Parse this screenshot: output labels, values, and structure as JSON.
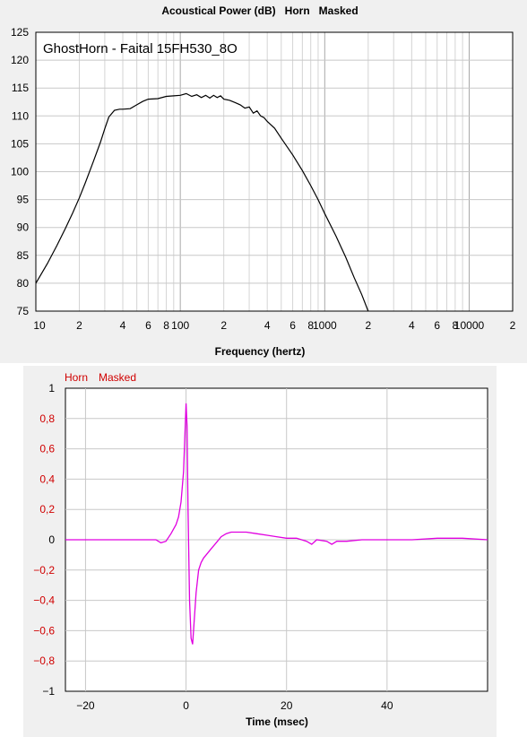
{
  "chart_data": [
    {
      "type": "line",
      "title": "Acoustical Power (dB)   Horn   Masked",
      "annotation": "GhostHorn - Faital 15FH530_8O",
      "xlabel": "Frequency (hertz)",
      "ylabel": "",
      "x_scale": "log",
      "xlim": [
        10,
        20000
      ],
      "ylim": [
        75,
        125
      ],
      "grid": true,
      "x_tick_labels": [
        {
          "v": 10,
          "t": "10"
        },
        {
          "v": 20,
          "t": "2"
        },
        {
          "v": 40,
          "t": "4"
        },
        {
          "v": 60,
          "t": "6"
        },
        {
          "v": 80,
          "t": "8"
        },
        {
          "v": 100,
          "t": "100"
        },
        {
          "v": 200,
          "t": "2"
        },
        {
          "v": 400,
          "t": "4"
        },
        {
          "v": 600,
          "t": "6"
        },
        {
          "v": 800,
          "t": "8"
        },
        {
          "v": 1000,
          "t": "1000"
        },
        {
          "v": 2000,
          "t": "2"
        },
        {
          "v": 4000,
          "t": "4"
        },
        {
          "v": 6000,
          "t": "6"
        },
        {
          "v": 8000,
          "t": "8"
        },
        {
          "v": 10000,
          "t": "10000"
        },
        {
          "v": 20000,
          "t": "2"
        }
      ],
      "y_tick_labels": [
        "75",
        "80",
        "85",
        "90",
        "95",
        "100",
        "105",
        "110",
        "115",
        "120",
        "125"
      ],
      "series": [
        {
          "color": "#000000",
          "x": [
            10,
            12,
            14,
            16,
            18,
            20,
            22,
            25,
            28,
            30,
            32,
            35,
            38,
            40,
            45,
            50,
            55,
            60,
            70,
            80,
            90,
            100,
            110,
            120,
            130,
            140,
            150,
            160,
            170,
            180,
            190,
            200,
            220,
            240,
            260,
            280,
            300,
            320,
            340,
            360,
            380,
            400,
            450,
            500,
            600,
            700,
            800,
            900,
            1000,
            1200,
            1400,
            1600,
            1800,
            2000
          ],
          "y": [
            80,
            83.5,
            86.8,
            89.8,
            92.6,
            95.3,
            98,
            101.8,
            105.3,
            107.7,
            109.8,
            111,
            111.2,
            111.2,
            111.3,
            112,
            112.6,
            113,
            113.1,
            113.5,
            113.6,
            113.7,
            114,
            113.5,
            113.8,
            113.3,
            113.7,
            113.2,
            113.7,
            113.3,
            113.6,
            113,
            112.8,
            112.4,
            112,
            111.4,
            111.6,
            110.5,
            110.9,
            110,
            109.7,
            109,
            107.8,
            106,
            103,
            100.2,
            97.5,
            95,
            92.5,
            88.4,
            84.6,
            81,
            78,
            75
          ]
        }
      ]
    },
    {
      "type": "line",
      "title": "",
      "legend": [
        "Horn",
        "Masked"
      ],
      "xlabel": "Time (msec)",
      "ylabel": "",
      "xlim": [
        -24,
        60
      ],
      "ylim": [
        -1,
        1
      ],
      "grid": true,
      "x_tick_labels": [
        {
          "v": -20,
          "t": "−20"
        },
        {
          "v": 0,
          "t": "0"
        },
        {
          "v": 20,
          "t": "20"
        },
        {
          "v": 40,
          "t": "40"
        }
      ],
      "y_tick_labels": [
        {
          "v": 1,
          "t": "1",
          "color": "#000000"
        },
        {
          "v": 0.8,
          "t": "0,8",
          "color": "#d00000"
        },
        {
          "v": 0.6,
          "t": "0,6",
          "color": "#d00000"
        },
        {
          "v": 0.4,
          "t": "0,4",
          "color": "#d00000"
        },
        {
          "v": 0.2,
          "t": "0,2",
          "color": "#d00000"
        },
        {
          "v": 0,
          "t": "0",
          "color": "#000000"
        },
        {
          "v": -0.2,
          "t": "−0,2",
          "color": "#d00000"
        },
        {
          "v": -0.4,
          "t": "−0,4",
          "color": "#d00000"
        },
        {
          "v": -0.6,
          "t": "−0,6",
          "color": "#d00000"
        },
        {
          "v": -0.8,
          "t": "−0,8",
          "color": "#d00000"
        },
        {
          "v": -1,
          "t": "−1",
          "color": "#000000"
        }
      ],
      "series": [
        {
          "color": "#e000e0",
          "x": [
            -24,
            -10,
            -6,
            -5,
            -4,
            -3,
            -2,
            -1.5,
            -1,
            -0.5,
            0,
            0.2,
            0.4,
            0.7,
            1,
            1.3,
            1.6,
            2,
            2.5,
            3,
            3.5,
            4,
            5,
            6,
            7,
            8,
            9,
            10,
            12,
            14,
            16,
            18,
            20,
            22,
            24,
            25,
            26,
            28,
            29,
            30,
            32,
            35,
            40,
            45,
            50,
            55,
            60
          ],
          "y": [
            0,
            0,
            0,
            -0.02,
            -0.01,
            0.04,
            0.1,
            0.15,
            0.25,
            0.45,
            0.9,
            0.75,
            0.2,
            -0.4,
            -0.65,
            -0.69,
            -0.55,
            -0.35,
            -0.2,
            -0.15,
            -0.12,
            -0.1,
            -0.06,
            -0.02,
            0.02,
            0.04,
            0.05,
            0.05,
            0.05,
            0.04,
            0.03,
            0.02,
            0.01,
            0.01,
            -0.01,
            -0.03,
            0,
            -0.01,
            -0.03,
            -0.01,
            -0.01,
            0,
            0,
            0,
            0.01,
            0.01,
            0
          ]
        }
      ]
    }
  ],
  "legend_colors": {
    "legend": "#d00000"
  }
}
